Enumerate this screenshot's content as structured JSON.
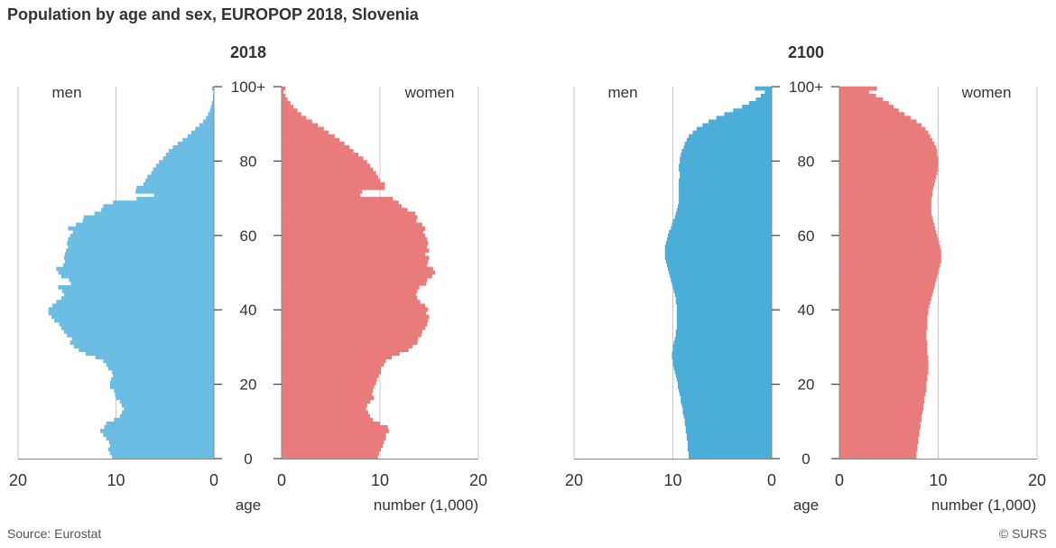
{
  "title": "Population by age and sex, EUROPOP 2018, Slovenia",
  "footer": {
    "source": "Source: Eurostat",
    "credit": "© SURS"
  },
  "chart_data": [
    {
      "type": "bar",
      "orientation": "horizontal",
      "title": "2018",
      "men_label": "men",
      "women_label": "women",
      "age_label": "age",
      "xlabel": "number (1,000)",
      "x_ticks": [
        20,
        10,
        0
      ],
      "x_ticks_right": [
        0,
        10,
        20
      ],
      "y_tick_labels": [
        "0",
        "20",
        "40",
        "60",
        "80",
        "100+"
      ],
      "xlim": [
        0,
        20
      ],
      "ylim": [
        0,
        100
      ],
      "grid": true,
      "colors": {
        "men": "#6bbde3",
        "women": "#e97b7b"
      },
      "series": [
        {
          "name": "men",
          "values": [
            10.4,
            10.6,
            10.8,
            10.6,
            10.7,
            11.0,
            11.3,
            11.6,
            11.2,
            11.0,
            10.2,
            9.6,
            9.4,
            9.2,
            9.4,
            9.6,
            10.0,
            10.1,
            10.2,
            10.6,
            10.6,
            10.5,
            10.3,
            10.4,
            10.8,
            11.0,
            11.3,
            12.1,
            13.1,
            13.8,
            14.3,
            14.7,
            14.5,
            15.0,
            15.3,
            15.6,
            15.8,
            16.3,
            16.6,
            16.9,
            16.9,
            16.5,
            16.1,
            15.6,
            15.3,
            15.5,
            15.9,
            14.6,
            14.8,
            15.6,
            15.9,
            16.1,
            15.4,
            15.2,
            15.3,
            15.2,
            15.1,
            14.9,
            15.0,
            14.9,
            14.7,
            14.4,
            14.9,
            14.1,
            13.4,
            13.3,
            12.2,
            11.5,
            11.3,
            10.3,
            7.9,
            6.1,
            8.0,
            7.9,
            7.2,
            7.0,
            6.8,
            6.4,
            6.2,
            5.9,
            5.6,
            5.2,
            4.9,
            4.6,
            4.2,
            3.7,
            3.2,
            2.7,
            2.3,
            1.9,
            1.5,
            1.1,
            0.8,
            0.6,
            0.4,
            0.3,
            0.2,
            0.1,
            0.1,
            0.05,
            0.2
          ]
        },
        {
          "name": "women",
          "values": [
            9.8,
            9.9,
            10.1,
            10.3,
            10.4,
            10.6,
            10.6,
            10.9,
            10.8,
            10.0,
            9.3,
            9.0,
            8.8,
            8.6,
            8.7,
            9.0,
            9.4,
            9.2,
            9.3,
            9.4,
            9.6,
            9.7,
            9.9,
            10.1,
            10.1,
            10.4,
            10.6,
            11.2,
            12.0,
            12.9,
            13.3,
            13.8,
            13.9,
            14.2,
            14.3,
            14.6,
            14.8,
            14.9,
            15.0,
            14.7,
            14.9,
            14.6,
            14.1,
            13.8,
            13.7,
            13.8,
            14.0,
            14.7,
            14.8,
            15.3,
            15.6,
            15.4,
            14.8,
            14.9,
            15.0,
            14.6,
            15.0,
            14.8,
            14.9,
            14.8,
            14.6,
            14.4,
            14.6,
            14.3,
            13.7,
            13.8,
            13.6,
            12.8,
            12.2,
            11.9,
            11.3,
            8.0,
            8.2,
            10.5,
            10.5,
            10.0,
            9.8,
            9.6,
            9.3,
            9.0,
            8.7,
            8.3,
            7.8,
            7.3,
            6.9,
            6.4,
            5.9,
            5.4,
            4.8,
            4.3,
            3.7,
            3.1,
            2.5,
            2.0,
            1.6,
            1.2,
            0.9,
            0.6,
            0.4,
            0.2,
            0.4
          ]
        }
      ]
    },
    {
      "type": "bar",
      "orientation": "horizontal",
      "title": "2100",
      "men_label": "men",
      "women_label": "women",
      "age_label": "age",
      "xlabel": "number (1,000)",
      "x_ticks": [
        20,
        10,
        0
      ],
      "x_ticks_right": [
        0,
        10,
        20
      ],
      "y_tick_labels": [
        "0",
        "20",
        "40",
        "60",
        "80",
        "100+"
      ],
      "xlim": [
        0,
        20
      ],
      "ylim": [
        0,
        100
      ],
      "grid": true,
      "colors": {
        "men": "#4aaed8",
        "women": "#e97b7b"
      },
      "series": [
        {
          "name": "men",
          "values": [
            8.4,
            8.4,
            8.5,
            8.5,
            8.5,
            8.6,
            8.6,
            8.7,
            8.7,
            8.8,
            8.8,
            8.9,
            9.0,
            9.0,
            9.1,
            9.2,
            9.2,
            9.3,
            9.4,
            9.5,
            9.5,
            9.6,
            9.7,
            9.8,
            9.9,
            10.0,
            10.0,
            10.1,
            10.1,
            10.0,
            10.0,
            9.9,
            9.8,
            9.7,
            9.7,
            9.6,
            9.6,
            9.6,
            9.6,
            9.6,
            9.6,
            9.6,
            9.7,
            9.7,
            9.8,
            9.9,
            10.0,
            10.1,
            10.2,
            10.3,
            10.4,
            10.5,
            10.6,
            10.7,
            10.8,
            10.8,
            10.8,
            10.8,
            10.7,
            10.6,
            10.5,
            10.4,
            10.2,
            10.1,
            10.0,
            9.8,
            9.7,
            9.6,
            9.5,
            9.4,
            9.4,
            9.4,
            9.4,
            9.4,
            9.4,
            9.4,
            9.3,
            9.3,
            9.4,
            9.4,
            9.3,
            9.3,
            9.2,
            9.1,
            8.9,
            8.8,
            8.6,
            8.4,
            8.0,
            7.6,
            7.0,
            6.4,
            5.6,
            4.8,
            3.9,
            3.0,
            2.3,
            1.6,
            1.1,
            0.7,
            1.7
          ]
        },
        {
          "name": "women",
          "values": [
            7.8,
            7.8,
            7.9,
            7.9,
            8.0,
            8.0,
            8.1,
            8.1,
            8.2,
            8.2,
            8.3,
            8.3,
            8.4,
            8.5,
            8.5,
            8.6,
            8.6,
            8.7,
            8.8,
            8.8,
            8.8,
            8.9,
            8.9,
            9.0,
            9.0,
            9.0,
            9.0,
            9.0,
            8.9,
            8.9,
            8.9,
            8.9,
            8.8,
            8.8,
            8.8,
            8.9,
            8.9,
            8.9,
            8.9,
            9.0,
            9.0,
            9.1,
            9.2,
            9.3,
            9.4,
            9.5,
            9.6,
            9.7,
            9.8,
            9.9,
            10.0,
            10.1,
            10.2,
            10.3,
            10.3,
            10.3,
            10.3,
            10.2,
            10.1,
            10.0,
            9.9,
            9.8,
            9.7,
            9.6,
            9.5,
            9.4,
            9.3,
            9.3,
            9.3,
            9.3,
            9.3,
            9.4,
            9.4,
            9.5,
            9.6,
            9.7,
            9.8,
            9.9,
            10.0,
            10.0,
            10.0,
            10.0,
            9.9,
            9.9,
            9.8,
            9.6,
            9.4,
            9.2,
            9.0,
            8.7,
            8.3,
            7.8,
            7.2,
            6.6,
            6.0,
            5.5,
            5.0,
            4.4,
            3.7,
            3.0,
            3.8
          ]
        }
      ]
    }
  ]
}
